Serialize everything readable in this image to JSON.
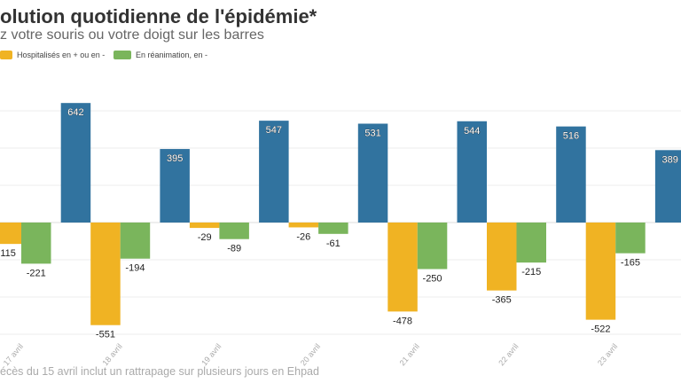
{
  "header": {
    "title": "olution quotidienne de l'épidémie*",
    "subtitle": "z votre souris ou votre doigt sur les barres"
  },
  "legend": [
    {
      "label": "Hospitalisés en + ou en -",
      "color": "#f0b323"
    },
    {
      "label": "En réanimation, en -",
      "color": "#7ab55c"
    }
  ],
  "footnote": "écès du 15 avril inclut un rattrapage sur plusieurs jours en Ehpad",
  "chart_data": {
    "type": "bar",
    "categories": [
      "17 avril",
      "18 avril",
      "19 avril",
      "20 avril",
      "21 avril",
      "22 avril",
      "23 avril",
      ""
    ],
    "series": [
      {
        "color": "#31739f",
        "values": [
          null,
          642,
          395,
          547,
          531,
          544,
          516,
          389
        ]
      },
      {
        "name": "Hospitalisés en + ou en -",
        "color": "#f0b323",
        "values": [
          -115,
          -551,
          -29,
          -26,
          -478,
          -365,
          -522,
          null
        ]
      },
      {
        "name": "En réanimation, en -",
        "color": "#7ab55c",
        "values": [
          -221,
          -194,
          -89,
          -61,
          -250,
          -215,
          -165,
          null
        ]
      }
    ],
    "ylim": [
      -600,
      600
    ],
    "grid": true,
    "legend_position": "top-left"
  }
}
